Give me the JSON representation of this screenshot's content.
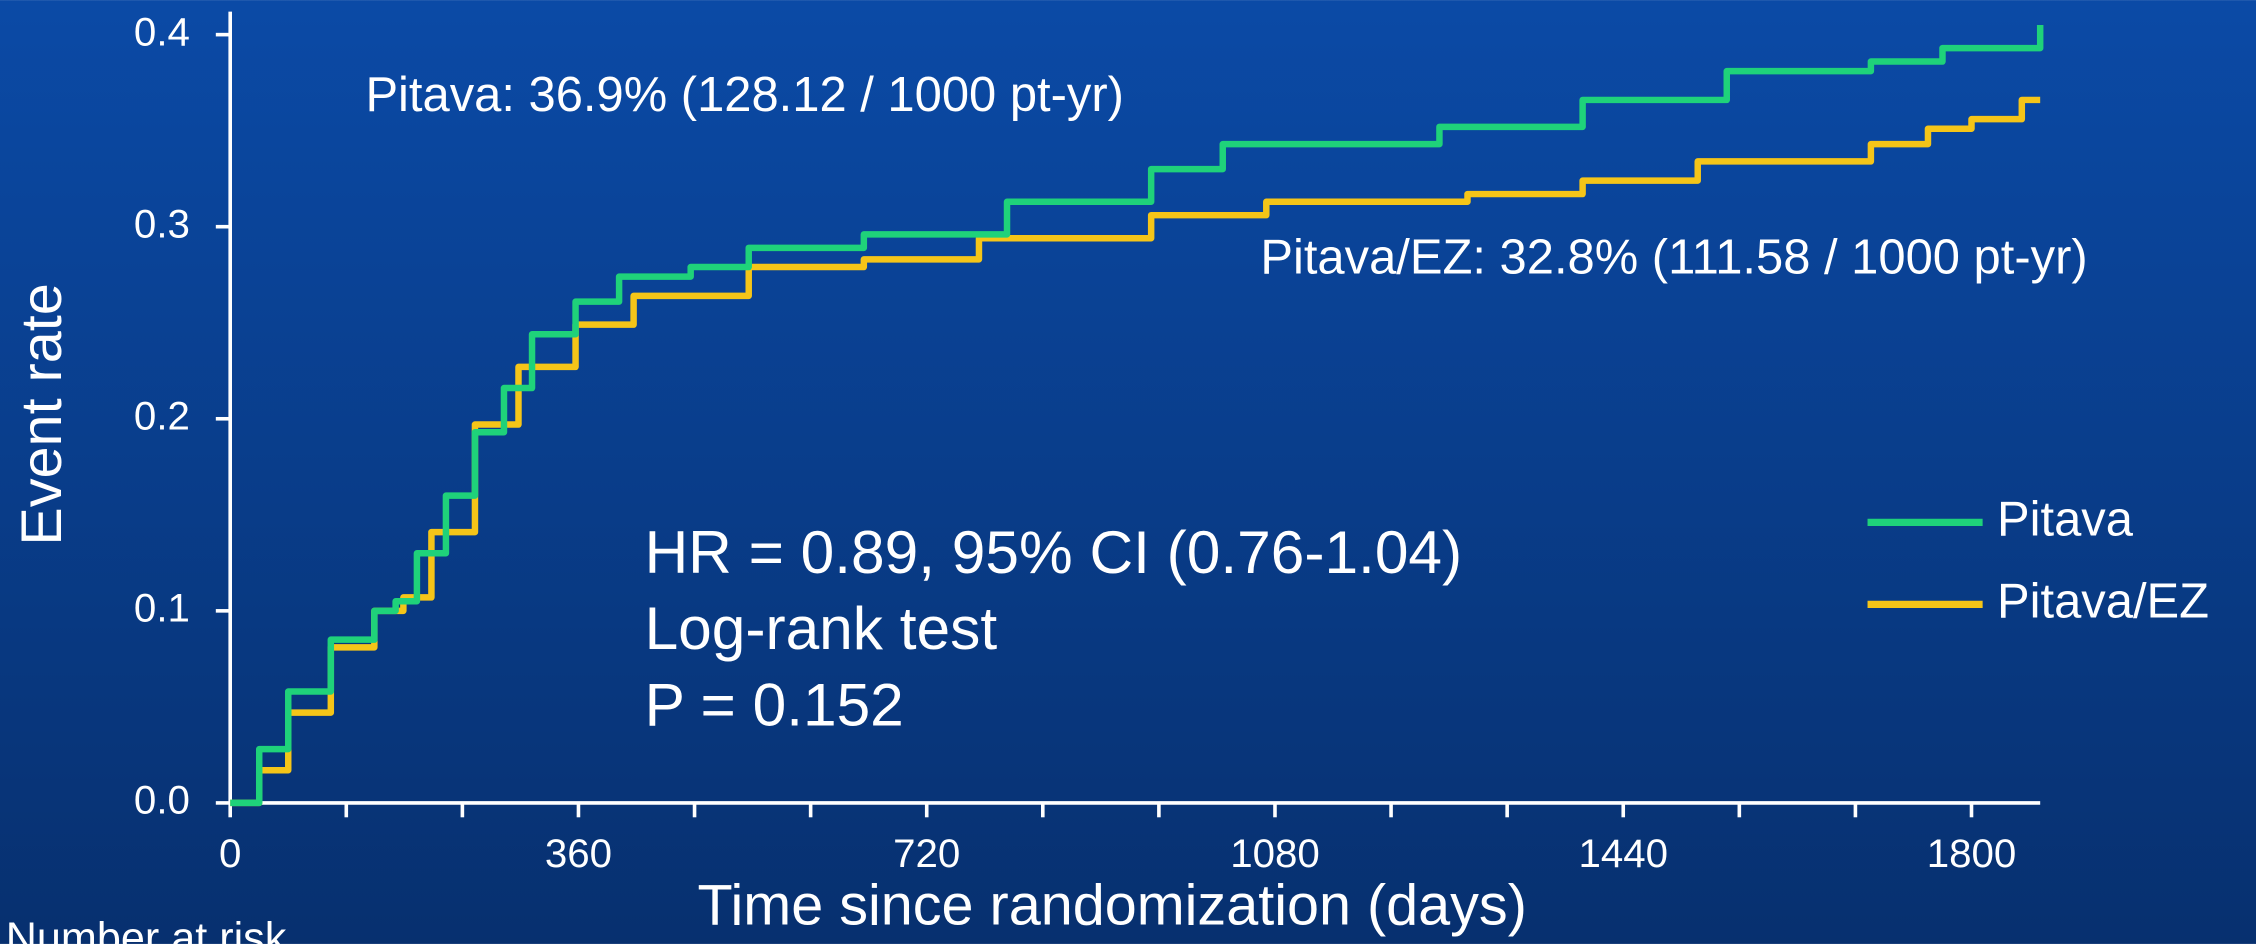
{
  "chart_data": {
    "type": "step-line",
    "x_label": "Time since randomization (days)",
    "y_label": "Event rate",
    "xlim": [
      0,
      1871
    ],
    "ylim": [
      0,
      0.412
    ],
    "xticks": [
      0,
      360,
      720,
      1080,
      1440,
      1800
    ],
    "xminorticks": [
      120,
      240,
      480,
      600,
      840,
      960,
      1200,
      1320,
      1560,
      1680
    ],
    "yticks": [
      {
        "value": 0,
        "label": "0.0"
      },
      0.1,
      0.2,
      0.3,
      0.4
    ],
    "legend": "right",
    "annotations": [
      "Pitava: 36.9% (128.12 / 1000 pt-yr)",
      "Pitava/EZ: 32.8% (111.58 / 1000 pt-yr)",
      "HR = 0.89, 95% CI (0.76-1.04)",
      "Log-rank test",
      "P = 0.152",
      "Number at risk"
    ],
    "series": [
      {
        "name": "Pitava",
        "color": "#1fd27a",
        "x": [
          0,
          30,
          60,
          104,
          149,
          171,
          193,
          223,
          253,
          283,
          312,
          357,
          402,
          476,
          536,
          655,
          803,
          952,
          1026,
          1250,
          1398,
          1547,
          1696,
          1770,
          1871
        ],
        "values": [
          0,
          0.028,
          0.058,
          0.085,
          0.1,
          0.105,
          0.13,
          0.16,
          0.193,
          0.216,
          0.244,
          0.261,
          0.274,
          0.279,
          0.289,
          0.296,
          0.313,
          0.33,
          0.343,
          0.352,
          0.366,
          0.381,
          0.386,
          0.393,
          0.405
        ]
      },
      {
        "name": "Pitava/EZ",
        "color": "#f5c518",
        "x": [
          0,
          30,
          60,
          104,
          149,
          179,
          208,
          253,
          298,
          357,
          417,
          536,
          655,
          774,
          952,
          1071,
          1279,
          1398,
          1517,
          1696,
          1755,
          1800,
          1852,
          1871
        ],
        "values": [
          0,
          0.017,
          0.047,
          0.081,
          0.1,
          0.107,
          0.141,
          0.197,
          0.227,
          0.249,
          0.264,
          0.279,
          0.283,
          0.294,
          0.306,
          0.313,
          0.317,
          0.324,
          0.334,
          0.343,
          0.351,
          0.356,
          0.366,
          0.366
        ]
      }
    ]
  }
}
